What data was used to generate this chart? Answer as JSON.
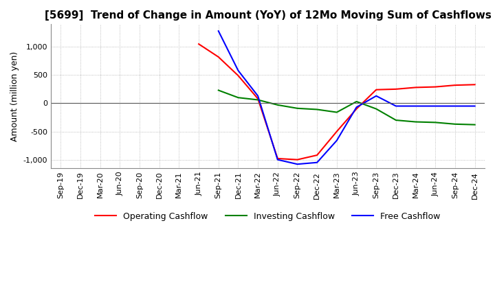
{
  "title": "[5699]  Trend of Change in Amount (YoY) of 12Mo Moving Sum of Cashflows",
  "ylabel": "Amount (million yen)",
  "ylim": [
    -1150,
    1400
  ],
  "yticks": [
    -1000,
    -500,
    0,
    500,
    1000
  ],
  "legend": [
    "Operating Cashflow",
    "Investing Cashflow",
    "Free Cashflow"
  ],
  "legend_colors": [
    "#ff0000",
    "#008000",
    "#0000ff"
  ],
  "x_labels": [
    "Sep-19",
    "Dec-19",
    "Mar-20",
    "Jun-20",
    "Sep-20",
    "Dec-20",
    "Mar-21",
    "Jun-21",
    "Sep-21",
    "Dec-21",
    "Mar-22",
    "Jun-22",
    "Sep-22",
    "Dec-22",
    "Mar-23",
    "Jun-23",
    "Sep-23",
    "Dec-23",
    "Mar-24",
    "Jun-24",
    "Sep-24",
    "Dec-24"
  ],
  "operating": [
    null,
    null,
    null,
    null,
    null,
    null,
    null,
    1050,
    820,
    490,
    80,
    -980,
    -1000,
    -920,
    -500,
    -100,
    240,
    250,
    280,
    290,
    320,
    330
  ],
  "investing": [
    null,
    null,
    null,
    null,
    null,
    null,
    null,
    null,
    230,
    100,
    60,
    -30,
    -90,
    -110,
    -160,
    30,
    -100,
    -300,
    -330,
    -340,
    -370,
    -380
  ],
  "free": [
    null,
    null,
    null,
    null,
    null,
    null,
    null,
    null,
    1280,
    580,
    130,
    -1000,
    -1080,
    -1050,
    -660,
    -70,
    130,
    -50,
    -50,
    -50,
    -50,
    -50
  ],
  "background_color": "#ffffff",
  "grid_color": "#aaaaaa",
  "title_fontsize": 11,
  "tick_fontsize": 8,
  "label_fontsize": 9
}
